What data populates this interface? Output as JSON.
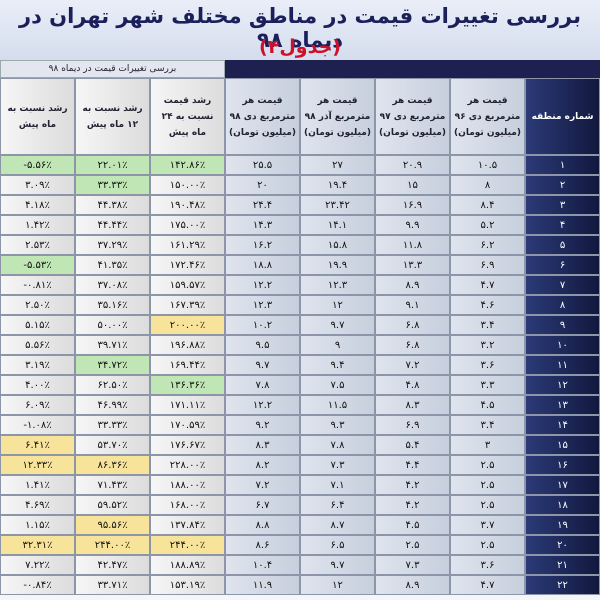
{
  "header": {
    "title": "بررسی تغییرات قیمت در مناطق مختلف شهر تهران در دیماه ۹۸",
    "subtitle": "(جدول۴)",
    "caption": "بررسی تغییرات قیمت در دیماه ۹۸"
  },
  "table": {
    "columns": [
      "شماره منطقه",
      "قیمت هر مترمربع دی ۹۶ (میلیون تومان)",
      "قیمت هر مترمربع دی ۹۷ (میلیون تومان)",
      "قیمت هر مترمربع آذر ۹۸ (میلیون تومان)",
      "قیمت هر مترمربع دی ۹۸ (میلیون تومان)",
      "رشد قیمت نسبت به ۲۴ ماه پیش",
      "رشد نسبت به ۱۲ ماه پیش",
      "رشد نسبت به ماه پیش"
    ],
    "rows": [
      [
        "۱",
        "۱۰.۵",
        "۲۰.۹",
        "۲۷",
        "۲۵.۵",
        "۱۴۲.۸۶٪",
        "۲۲.۰۱٪",
        "-۵.۵۶٪"
      ],
      [
        "۲",
        "۸",
        "۱۵",
        "۱۹.۴",
        "۲۰",
        "۱۵۰.۰۰٪",
        "۳۳.۳۳٪",
        "۳.۰۹٪"
      ],
      [
        "۳",
        "۸.۴",
        "۱۶.۹",
        "۲۳.۴۲",
        "۲۴.۴",
        "۱۹۰.۴۸٪",
        "۴۴.۳۸٪",
        "۴.۱۸٪"
      ],
      [
        "۴",
        "۵.۲",
        "۹.۹",
        "۱۴.۱",
        "۱۴.۳",
        "۱۷۵.۰۰٪",
        "۴۴.۴۴٪",
        "۱.۴۲٪"
      ],
      [
        "۵",
        "۶.۲",
        "۱۱.۸",
        "۱۵.۸",
        "۱۶.۲",
        "۱۶۱.۲۹٪",
        "۳۷.۲۹٪",
        "۲.۵۳٪"
      ],
      [
        "۶",
        "۶.۹",
        "۱۳.۳",
        "۱۹.۹",
        "۱۸.۸",
        "۱۷۲.۴۶٪",
        "۴۱.۳۵٪",
        "-۵.۵۳٪"
      ],
      [
        "۷",
        "۴.۷",
        "۸.۹",
        "۱۲.۳",
        "۱۲.۲",
        "۱۵۹.۵۷٪",
        "۳۷.۰۸٪",
        "-۰.۸۱٪"
      ],
      [
        "۸",
        "۴.۶",
        "۹.۱",
        "۱۲",
        "۱۲.۳",
        "۱۶۷.۳۹٪",
        "۳۵.۱۶٪",
        "۲.۵۰٪"
      ],
      [
        "۹",
        "۳.۴",
        "۶.۸",
        "۹.۷",
        "۱۰.۲",
        "۲۰۰.۰۰٪",
        "۵۰.۰۰٪",
        "۵.۱۵٪"
      ],
      [
        "۱۰",
        "۳.۲",
        "۶.۸",
        "۹",
        "۹.۵",
        "۱۹۶.۸۸٪",
        "۳۹.۷۱٪",
        "۵.۵۶٪"
      ],
      [
        "۱۱",
        "۳.۶",
        "۷.۲",
        "۹.۴",
        "۹.۷",
        "۱۶۹.۴۴٪",
        "۳۴.۷۲٪",
        "۳.۱۹٪"
      ],
      [
        "۱۲",
        "۳.۳",
        "۴.۸",
        "۷.۵",
        "۷.۸",
        "۱۳۶.۳۶٪",
        "۶۲.۵۰٪",
        "۴.۰۰٪"
      ],
      [
        "۱۳",
        "۴.۵",
        "۸.۳",
        "۱۱.۵",
        "۱۲.۲",
        "۱۷۱.۱۱٪",
        "۴۶.۹۹٪",
        "۶.۰۹٪"
      ],
      [
        "۱۴",
        "۳.۴",
        "۶.۹",
        "۹.۳",
        "۹.۲",
        "۱۷۰.۵۹٪",
        "۳۳.۳۳٪",
        "-۱.۰۸٪"
      ],
      [
        "۱۵",
        "۳",
        "۵.۴",
        "۷.۸",
        "۸.۳",
        "۱۷۶.۶۷٪",
        "۵۳.۷۰٪",
        "۶.۴۱٪"
      ],
      [
        "۱۶",
        "۲.۵",
        "۴.۴",
        "۷.۳",
        "۸.۲",
        "۲۲۸.۰۰٪",
        "۸۶.۳۶٪",
        "۱۲.۳۳٪"
      ],
      [
        "۱۷",
        "۲.۵",
        "۴.۲",
        "۷.۱",
        "۷.۲",
        "۱۸۸.۰۰٪",
        "۷۱.۴۳٪",
        "۱.۴۱٪"
      ],
      [
        "۱۸",
        "۲.۵",
        "۴.۲",
        "۶.۴",
        "۶.۷",
        "۱۶۸.۰۰٪",
        "۵۹.۵۲٪",
        "۴.۶۹٪"
      ],
      [
        "۱۹",
        "۳.۷",
        "۴.۵",
        "۸.۷",
        "۸.۸",
        "۱۳۷.۸۴٪",
        "۹۵.۵۶٪",
        "۱.۱۵٪"
      ],
      [
        "۲۰",
        "۲.۵",
        "۲.۵",
        "۶.۵",
        "۸.۶",
        "۲۴۴.۰۰٪",
        "۲۴۴.۰۰٪",
        "۳۲.۳۱٪"
      ],
      [
        "۲۱",
        "۳.۶",
        "۷.۳",
        "۹.۷",
        "۱۰.۴",
        "۱۸۸.۸۹٪",
        "۴۲.۴۷٪",
        "۷.۲۲٪"
      ],
      [
        "۲۲",
        "۴.۷",
        "۸.۹",
        "۱۲",
        "۱۱.۹",
        "۱۵۳.۱۹٪",
        "۳۳.۷۱٪",
        "-۰.۸۴٪"
      ]
    ]
  }
}
